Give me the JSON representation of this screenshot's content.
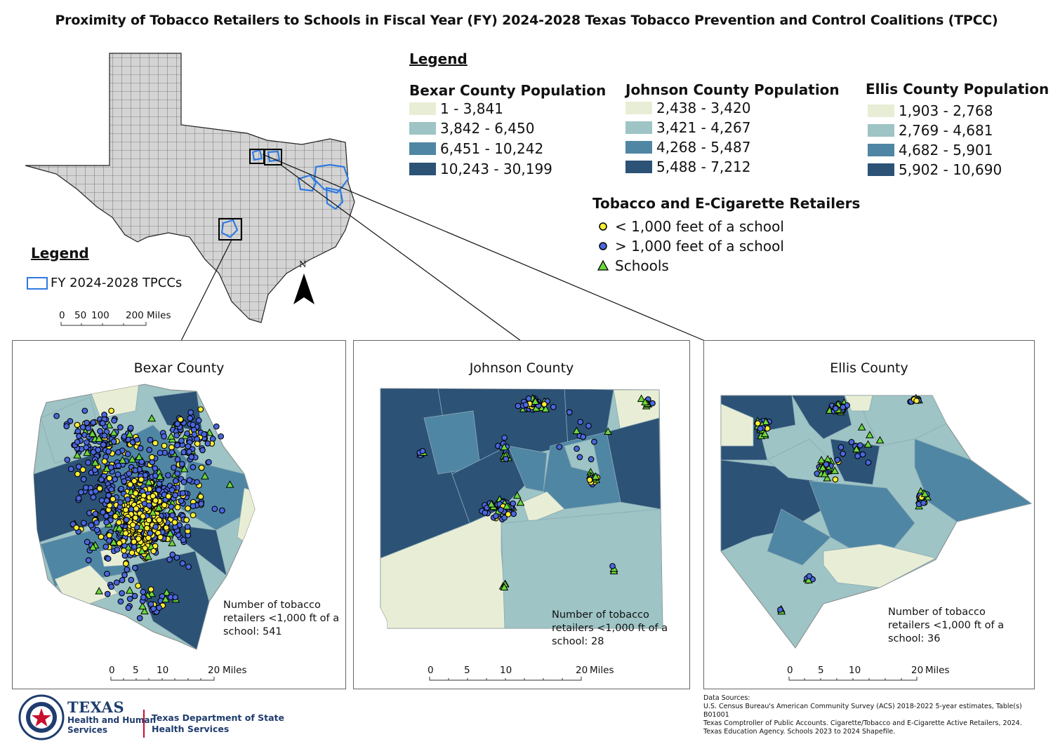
{
  "title": "Proximity of Tobacco Retailers to Schools in Fiscal Year (FY) 2024-2028 Texas Tobacco Prevention and Control Coalitions (TPCC)",
  "colors": {
    "class1": "#e8eed5",
    "class2": "#9ec4c5",
    "class3": "#4f86a3",
    "class4": "#2c5276",
    "state_fill": "#d4d4d4",
    "tpcc_outline": "#2e7ae0",
    "retailer_near": "#ffee33",
    "retailer_far": "#4a67dd",
    "school": "#6ad83a"
  },
  "legend_main": {
    "heading": "Legend",
    "bexar": {
      "title": "Bexar County Population",
      "classes": [
        "1 - 3,841",
        "3,842 - 6,450",
        "6,451 - 10,242",
        "10,243 - 30,199"
      ]
    },
    "johnson": {
      "title": "Johnson County Population",
      "classes": [
        "2,438 - 3,420",
        "3,421 - 4,267",
        "4,268 - 5,487",
        "5,488 - 7,212"
      ]
    },
    "ellis": {
      "title": "Ellis County Population",
      "classes": [
        "1,903 - 2,768",
        "2,769 - 4,681",
        "4,682 - 5,901",
        "5,902 - 10,690"
      ]
    },
    "retailers": {
      "title": "Tobacco and E-Cigarette Retailers",
      "near": "< 1,000 feet of a school",
      "far": "> 1,000 feet of a school",
      "schools": "Schools"
    }
  },
  "legend_state": {
    "heading": "Legend",
    "tpcc": "FY 2024-2028 TPCCs"
  },
  "state_scale": {
    "ticks": [
      "0",
      "50",
      "100",
      "200"
    ],
    "unit": "Miles"
  },
  "north_label": "N",
  "panels": [
    {
      "title": "Bexar County",
      "note": [
        "Number of tobacco",
        "retailers <1,000 ft of a",
        "school: 541"
      ],
      "near_count": 541,
      "scale_ticks": [
        "0",
        "5",
        "10",
        "20"
      ],
      "scale_unit": "Miles"
    },
    {
      "title": "Johnson County",
      "note": [
        "Number of tobacco",
        "retailers <1,000 ft of a",
        "school: 28"
      ],
      "near_count": 28,
      "scale_ticks": [
        "0",
        "5",
        "10",
        "20"
      ],
      "scale_unit": "Miles"
    },
    {
      "title": "Ellis County",
      "note": [
        "Number of tobacco",
        "retailers <1,000 ft of a",
        "school: 36"
      ],
      "near_count": 36,
      "scale_ticks": [
        "0",
        "5",
        "10",
        "20"
      ],
      "scale_unit": "Miles"
    }
  ],
  "logo": {
    "texas": "TEXAS",
    "hhs1": "Health and Human",
    "hhs2": "Services",
    "dshs1": "Texas Department of State",
    "dshs2": "Health Services"
  },
  "sources": {
    "heading": "Data Sources:",
    "lines": [
      "U.S. Census Bureau's American Community Survey (ACS) 2018-2022 5-year estimates, Table(s)",
      "B01001",
      "Texas Comptroller of Public Accounts. Cigarette/Tobacco and E-Cigarette Active Retailers, 2024.",
      "Texas Education Agency. Schools 2023 to 2024 Shapefile."
    ]
  }
}
